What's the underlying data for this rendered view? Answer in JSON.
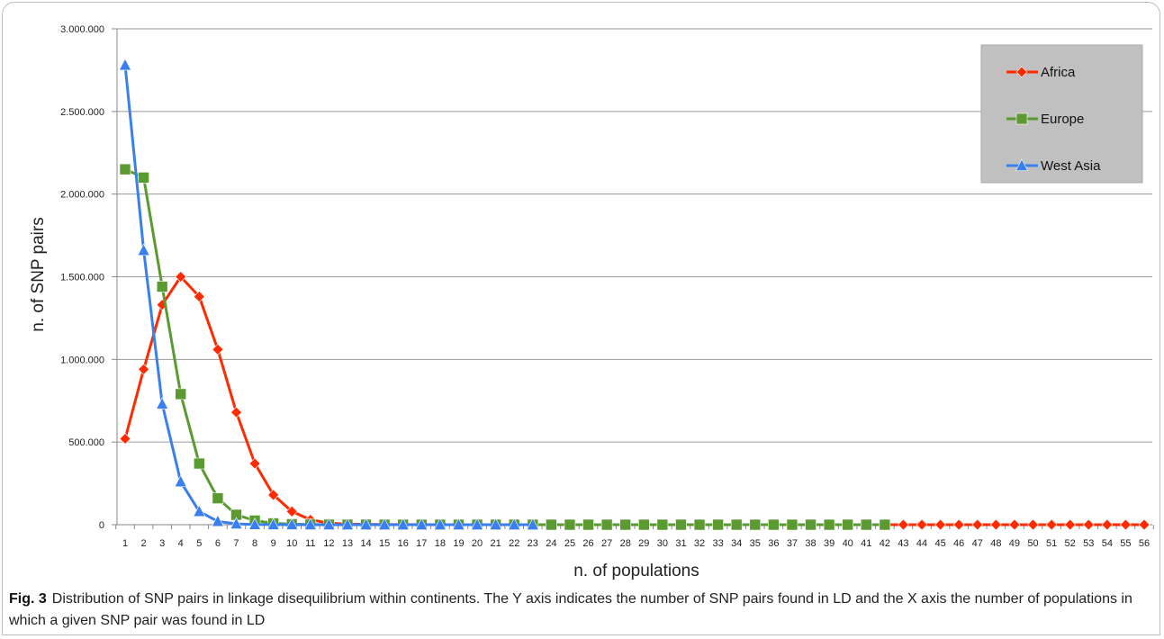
{
  "chart_data": {
    "type": "line",
    "ylabel": "n. of SNP pairs",
    "xlabel": "n. of populations",
    "ylim": [
      0,
      3000000
    ],
    "yticks": [
      0,
      500000,
      1000000,
      1500000,
      2000000,
      2500000,
      3000000
    ],
    "ytick_labels": [
      "0",
      "500.000",
      "1.000.000",
      "1.500.000",
      "2.000.000",
      "2.500.000",
      "3.000.000"
    ],
    "xlim": [
      1,
      56
    ],
    "grid": "horizontal",
    "legend_position": "top-right",
    "series": [
      {
        "name": "Africa",
        "color": "#ff2a00",
        "marker": "diamond",
        "x": [
          1,
          2,
          3,
          4,
          5,
          6,
          7,
          8,
          9,
          10,
          11,
          12,
          13,
          14,
          15,
          16,
          17,
          18,
          19,
          20,
          21,
          22,
          23,
          24,
          25,
          26,
          27,
          28,
          29,
          30,
          31,
          32,
          33,
          34,
          35,
          36,
          37,
          38,
          39,
          40,
          41,
          42,
          43,
          44,
          45,
          46,
          47,
          48,
          49,
          50,
          51,
          52,
          53,
          54,
          55,
          56
        ],
        "values": [
          520000,
          940000,
          1330000,
          1500000,
          1380000,
          1060000,
          680000,
          370000,
          180000,
          80000,
          30000,
          10000,
          4000,
          2000,
          1000,
          500,
          300,
          200,
          100,
          100,
          0,
          0,
          0,
          0,
          0,
          0,
          0,
          0,
          0,
          0,
          0,
          0,
          0,
          0,
          0,
          0,
          0,
          0,
          0,
          0,
          0,
          0,
          0,
          0,
          0,
          0,
          0,
          0,
          0,
          0,
          0,
          0,
          0,
          0,
          0,
          0
        ]
      },
      {
        "name": "Europe",
        "color": "#5a9a30",
        "marker": "square",
        "x": [
          1,
          2,
          3,
          4,
          5,
          6,
          7,
          8,
          9,
          10,
          11,
          12,
          13,
          14,
          15,
          16,
          17,
          18,
          19,
          20,
          21,
          22,
          23,
          24,
          25,
          26,
          27,
          28,
          29,
          30,
          31,
          32,
          33,
          34,
          35,
          36,
          37,
          38,
          39,
          40,
          41,
          42
        ],
        "values": [
          2150000,
          2100000,
          1440000,
          790000,
          370000,
          160000,
          60000,
          25000,
          8000,
          3000,
          1000,
          500,
          200,
          100,
          0,
          0,
          0,
          0,
          0,
          0,
          0,
          0,
          0,
          0,
          0,
          0,
          0,
          0,
          0,
          0,
          0,
          0,
          0,
          0,
          0,
          0,
          0,
          0,
          0,
          0,
          0,
          0
        ]
      },
      {
        "name": "West Asia",
        "color": "#3a7ff0",
        "marker": "triangle",
        "x": [
          1,
          2,
          3,
          4,
          5,
          6,
          7,
          8,
          9,
          10,
          11,
          12,
          13,
          14,
          15,
          16,
          17,
          18,
          19,
          20,
          21,
          22,
          23
        ],
        "values": [
          2780000,
          1660000,
          730000,
          260000,
          80000,
          20000,
          5000,
          1000,
          300,
          100,
          0,
          0,
          0,
          0,
          0,
          0,
          0,
          0,
          0,
          0,
          0,
          0,
          0
        ]
      }
    ]
  },
  "caption": {
    "label": "Fig. 3",
    "text": "Distribution of SNP pairs in linkage disequilibrium within continents. The Y axis indicates the number of SNP pairs found in LD and the X axis the number of populations in which a given SNP pair was found in LD"
  }
}
